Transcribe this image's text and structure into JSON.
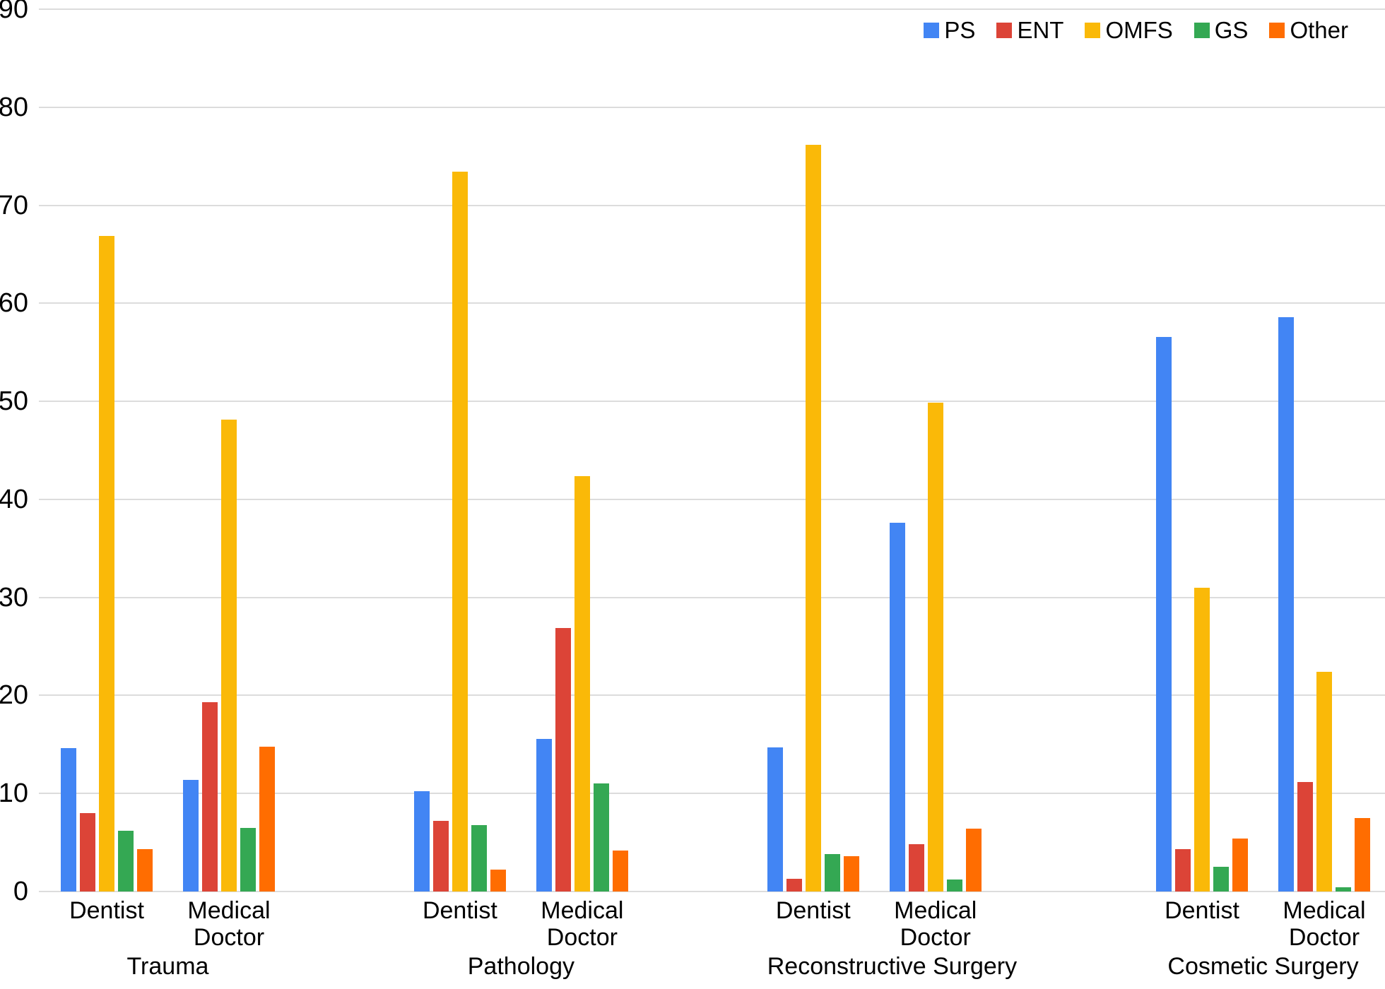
{
  "chart_data": {
    "type": "bar",
    "title": "",
    "xlabel": "",
    "ylabel": "",
    "ylim": [
      0,
      90
    ],
    "yticks": [
      0,
      10,
      20,
      30,
      40,
      50,
      60,
      70,
      80,
      90
    ],
    "grid": true,
    "legend_position": "top-right",
    "gridline_color": "#dcdcdc",
    "series": [
      {
        "name": "PS",
        "color": "#4285F4"
      },
      {
        "name": "ENT",
        "color": "#DC4437"
      },
      {
        "name": "OMFS",
        "color": "#FAB908"
      },
      {
        "name": "GS",
        "color": "#34A853"
      },
      {
        "name": "Other",
        "color": "#FF6D01"
      }
    ],
    "groups": [
      {
        "label": "Trauma",
        "clusters": [
          {
            "label": "Dentist",
            "values": [
              14.6,
              8.0,
              66.9,
              6.2,
              4.3
            ]
          },
          {
            "label": "Medical Doctor",
            "values": [
              11.4,
              19.3,
              48.1,
              6.5,
              14.8
            ]
          }
        ]
      },
      {
        "label": "Pathology",
        "clusters": [
          {
            "label": "Dentist",
            "values": [
              10.2,
              7.2,
              73.4,
              6.8,
              2.2
            ]
          },
          {
            "label": "Medical Doctor",
            "values": [
              15.6,
              26.9,
              42.4,
              11.0,
              4.2
            ]
          }
        ]
      },
      {
        "label": "Reconstructive Surgery",
        "clusters": [
          {
            "label": "Dentist",
            "values": [
              14.7,
              1.3,
              76.2,
              3.8,
              3.6
            ]
          },
          {
            "label": "Medical Doctor",
            "values": [
              37.6,
              4.8,
              49.9,
              1.2,
              6.4
            ]
          }
        ]
      },
      {
        "label": "Cosmetic Surgery",
        "clusters": [
          {
            "label": "Dentist",
            "values": [
              56.6,
              4.3,
              31.0,
              2.5,
              5.4
            ]
          },
          {
            "label": "Medical Doctor",
            "values": [
              58.6,
              11.2,
              22.4,
              0.4,
              7.5
            ]
          }
        ]
      }
    ]
  }
}
